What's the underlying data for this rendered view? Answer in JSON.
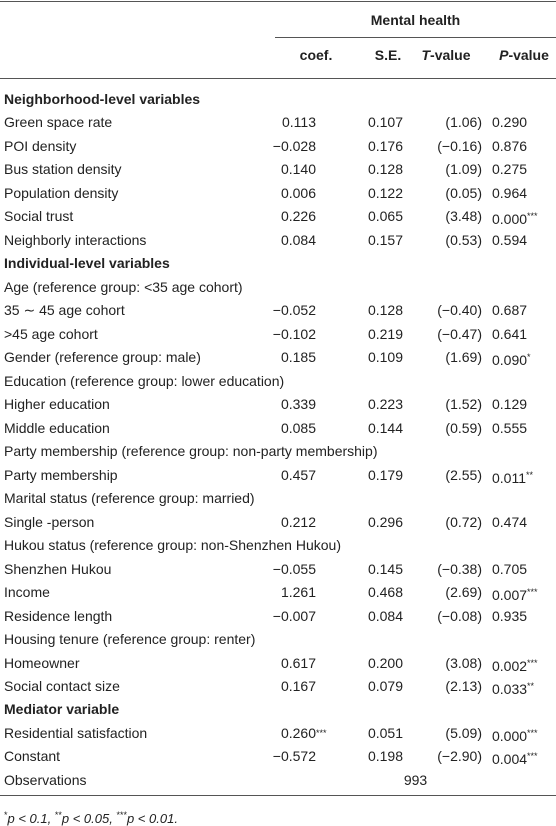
{
  "table": {
    "group_header": "Mental health",
    "columns": [
      {
        "text": "coef."
      },
      {
        "text": "S.E."
      },
      {
        "italic": "T",
        "rest": "-value"
      },
      {
        "italic": "P",
        "rest": "-value"
      }
    ],
    "rows": [
      {
        "section": "Neighborhood-level variables"
      },
      {
        "label": "Green space rate",
        "cells": [
          "0.113",
          "0.107",
          "(1.06)",
          "0.290"
        ]
      },
      {
        "label": "POI density",
        "cells": [
          "−0.028",
          "0.176",
          "(−0.16)",
          "0.876"
        ]
      },
      {
        "label": "Bus station density",
        "cells": [
          "0.140",
          "0.128",
          "(1.09)",
          "0.275"
        ]
      },
      {
        "label": "Population density",
        "cells": [
          "0.006",
          "0.122",
          "(0.05)",
          "0.964"
        ]
      },
      {
        "label": "Social trust",
        "cells": [
          "0.226",
          "0.065",
          "(3.48)",
          {
            "value": "0.000",
            "stars": "***"
          }
        ]
      },
      {
        "label": "Neighborly interactions",
        "cells": [
          "0.084",
          "0.157",
          "(0.53)",
          "0.594"
        ]
      },
      {
        "section": "Individual-level variables"
      },
      {
        "group": "Age (reference group: <35 age cohort)"
      },
      {
        "label": "35 ∼ 45 age cohort",
        "cells": [
          "−0.052",
          "0.128",
          "(−0.40)",
          "0.687"
        ]
      },
      {
        "label": ">45 age cohort",
        "cells": [
          "−0.102",
          "0.219",
          "(−0.47)",
          "0.641"
        ]
      },
      {
        "label": "Gender (reference group: male)",
        "cells": [
          "0.185",
          "0.109",
          "(1.69)",
          {
            "value": "0.090",
            "stars": "*"
          }
        ]
      },
      {
        "group": "Education (reference group: lower education)"
      },
      {
        "label": "Higher education",
        "cells": [
          "0.339",
          "0.223",
          "(1.52)",
          "0.129"
        ]
      },
      {
        "label": "Middle education",
        "cells": [
          "0.085",
          "0.144",
          "(0.59)",
          "0.555"
        ]
      },
      {
        "group": "Party membership (reference group: non-party membership)"
      },
      {
        "label": "Party membership",
        "cells": [
          "0.457",
          "0.179",
          "(2.55)",
          {
            "value": "0.011",
            "stars": "**"
          }
        ]
      },
      {
        "group": "Marital status (reference group: married)"
      },
      {
        "label": "Single -person",
        "cells": [
          "0.212",
          "0.296",
          "(0.72)",
          "0.474"
        ]
      },
      {
        "group": "Hukou status (reference group: non-Shenzhen Hukou)"
      },
      {
        "label": "Shenzhen Hukou",
        "cells": [
          "−0.055",
          "0.145",
          "(−0.38)",
          "0.705"
        ]
      },
      {
        "label": "Income",
        "cells": [
          "1.261",
          "0.468",
          "(2.69)",
          {
            "value": "0.007",
            "stars": "***"
          }
        ]
      },
      {
        "label": "Residence length",
        "cells": [
          "−0.007",
          "0.084",
          "(−0.08)",
          "0.935"
        ]
      },
      {
        "group": "Housing tenure (reference group: renter)"
      },
      {
        "label": "Homeowner",
        "cells": [
          "0.617",
          "0.200",
          "(3.08)",
          {
            "value": "0.002",
            "stars": "***"
          }
        ]
      },
      {
        "label": "Social contact size",
        "cells": [
          "0.167",
          "0.079",
          "(2.13)",
          {
            "value": "0.033",
            "stars": "**"
          }
        ]
      },
      {
        "section": "Mediator variable"
      },
      {
        "label": "Residential satisfaction",
        "cells": [
          {
            "value": "0.260",
            "stars": "***"
          },
          "0.051",
          "(5.09)",
          {
            "value": "0.000",
            "stars": "***"
          }
        ]
      },
      {
        "label": "Constant",
        "cells": [
          "−0.572",
          "0.198",
          "(−2.90)",
          {
            "value": "0.004",
            "stars": "***"
          }
        ]
      },
      {
        "label": "Observations",
        "value": "993"
      }
    ]
  },
  "footnote": {
    "items": [
      {
        "stars": "*",
        "text": "p < 0.1, "
      },
      {
        "stars": "**",
        "text": "p < 0.05, "
      },
      {
        "stars": "***",
        "text": "p < 0.01."
      }
    ]
  }
}
